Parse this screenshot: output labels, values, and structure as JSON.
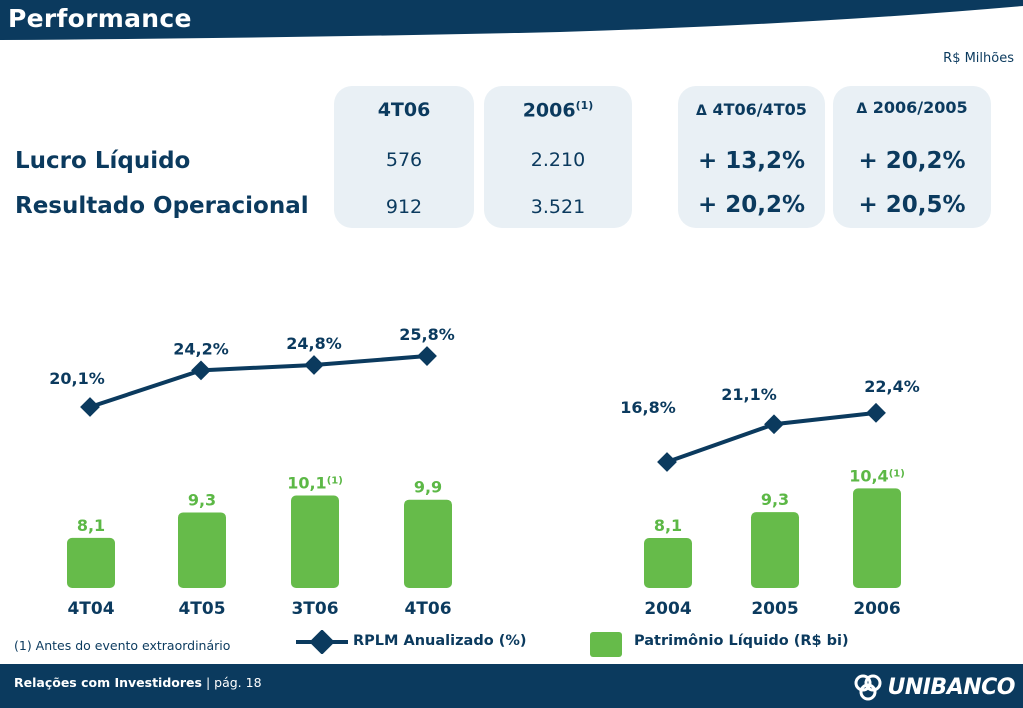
{
  "header": {
    "title": "Performance"
  },
  "unit_note": "R$ Milhões",
  "table": {
    "col_4t06": "4T06",
    "col_2006": "2006",
    "col_2006_sup": "(1)",
    "delta_symbol": "Δ",
    "col_delta_q": "4T06/4T05",
    "col_delta_y": "2006/2005",
    "rows": [
      {
        "label": "Lucro Líquido",
        "v_4t06": "576",
        "v_2006": "2.210",
        "d_q": "+ 13,2%",
        "d_y": "+ 20,2%"
      },
      {
        "label": "Resultado Operacional",
        "v_4t06": "912",
        "v_2006": "3.521",
        "d_q": "+ 20,2%",
        "d_y": "+ 20,5%"
      }
    ]
  },
  "colors": {
    "navy": "#0b3a5e",
    "green": "#66bb4a",
    "green_text": "#5cb846",
    "panel": "#e9f0f5"
  },
  "chart_data": [
    {
      "type": "bar",
      "categories": [
        "4T04",
        "4T05",
        "3T06",
        "4T06"
      ],
      "series": [
        {
          "name": "Patrimônio Líquido (R$ bi)",
          "type": "bar",
          "values": [
            8.1,
            9.3,
            10.1,
            9.9
          ],
          "labels": [
            "8,1",
            "9,3",
            "10,1",
            "9,9"
          ],
          "notes": [
            "",
            "",
            "(1)",
            ""
          ]
        },
        {
          "name": "RPLM Anualizado (%)",
          "type": "line",
          "values": [
            20.1,
            24.2,
            24.8,
            25.8
          ],
          "labels": [
            "20,1%",
            "24,2%",
            "24,8%",
            "25,8%"
          ]
        }
      ]
    },
    {
      "type": "bar",
      "categories": [
        "2004",
        "2005",
        "2006"
      ],
      "series": [
        {
          "name": "Patrimônio Líquido (R$ bi)",
          "type": "bar",
          "values": [
            8.1,
            9.3,
            10.4
          ],
          "labels": [
            "8,1",
            "9,3",
            "10,4"
          ],
          "notes": [
            "",
            "",
            "(1)"
          ]
        },
        {
          "name": "RPLM Anualizado (%)",
          "type": "line",
          "values": [
            16.8,
            21.1,
            22.4
          ],
          "labels": [
            "16,8%",
            "21,1%",
            "22,4%"
          ]
        }
      ]
    }
  ],
  "legend": {
    "footnote": "(1) Antes do evento extraordinário",
    "line_label": "RPLM Anualizado (%)",
    "bar_label": "Patrimônio Líquido (R$ bi)"
  },
  "footer": {
    "section": "Relações com Investidores",
    "separator": "|",
    "page": "pág. 18",
    "logo_text": "UNIBANCO"
  }
}
